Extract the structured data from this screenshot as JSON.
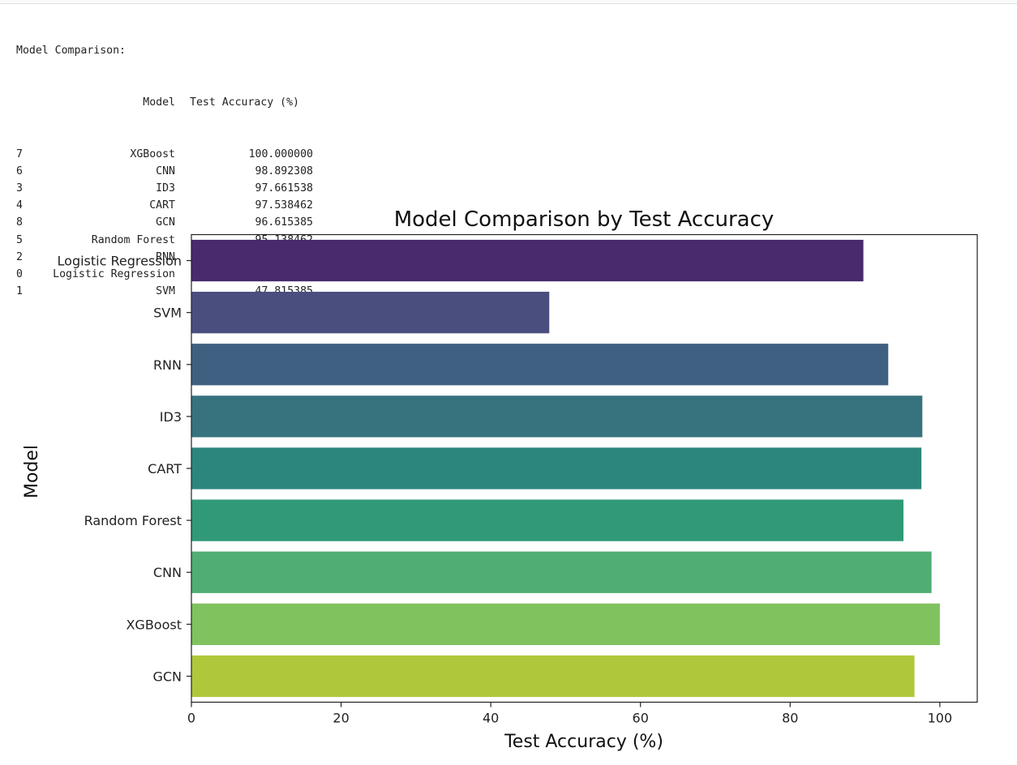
{
  "output": {
    "header": "Model Comparison:",
    "columns": [
      "Model",
      "Test Accuracy (%)"
    ],
    "rows": [
      {
        "index": "7",
        "model": "XGBoost",
        "accuracy": "100.000000"
      },
      {
        "index": "6",
        "model": "CNN",
        "accuracy": "98.892308"
      },
      {
        "index": "3",
        "model": "ID3",
        "accuracy": "97.661538"
      },
      {
        "index": "4",
        "model": "CART",
        "accuracy": "97.538462"
      },
      {
        "index": "8",
        "model": "GCN",
        "accuracy": "96.615385"
      },
      {
        "index": "5",
        "model": "Random Forest",
        "accuracy": "95.138462"
      },
      {
        "index": "2",
        "model": "RNN",
        "accuracy": "93.107692"
      },
      {
        "index": "0",
        "model": "Logistic Regression",
        "accuracy": "89.784615"
      },
      {
        "index": "1",
        "model": "SVM",
        "accuracy": "47.815385"
      }
    ]
  },
  "chart_data": {
    "type": "bar",
    "orientation": "horizontal",
    "title": "Model Comparison by Test Accuracy",
    "xlabel": "Test Accuracy (%)",
    "ylabel": "Model",
    "categories": [
      "Logistic Regression",
      "SVM",
      "RNN",
      "ID3",
      "CART",
      "Random Forest",
      "CNN",
      "XGBoost",
      "GCN"
    ],
    "values": [
      89.784615,
      47.815385,
      93.107692,
      97.661538,
      97.538462,
      95.138462,
      98.892308,
      100.0,
      96.615385
    ],
    "colors": [
      "#482a6d",
      "#4a4e7f",
      "#406081",
      "#36737f",
      "#2c867e",
      "#309978",
      "#50ae73",
      "#80c25e",
      "#afc83b"
    ],
    "xlim": [
      0,
      105
    ],
    "xticks": [
      0,
      20,
      40,
      60,
      80,
      100
    ],
    "grid": false,
    "legend": "none"
  }
}
